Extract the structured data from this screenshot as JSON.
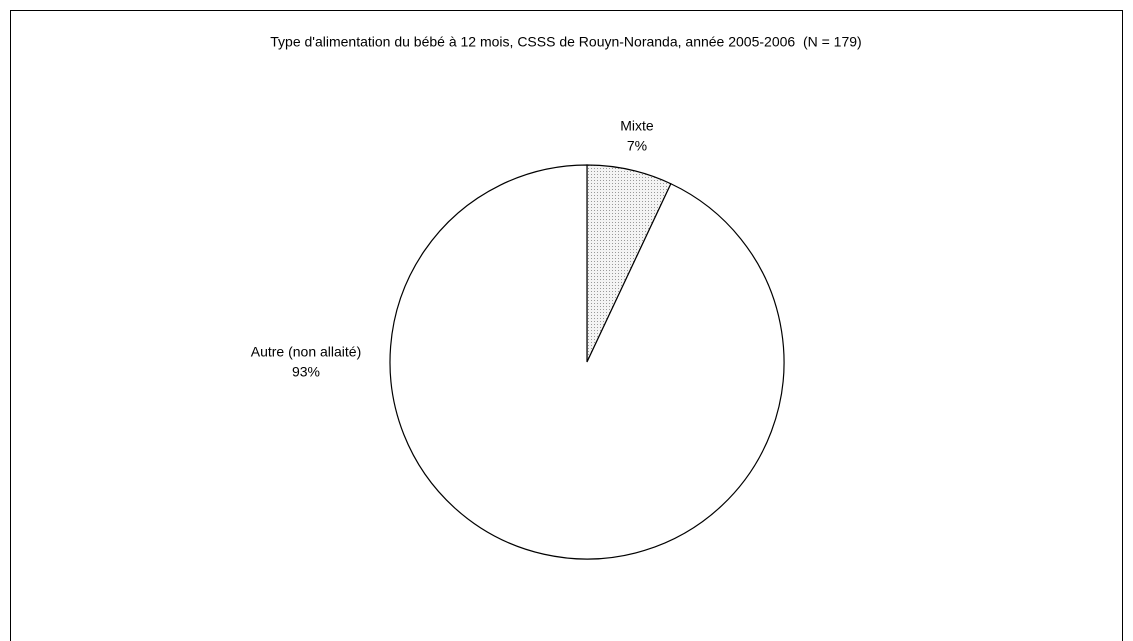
{
  "chart_data": {
    "type": "pie",
    "title": "Type d'alimentation du bébé à 12 mois, CSSS de Rouyn-Noranda, année 2005-2006  (N = 179)",
    "categories": [
      "Mixte",
      "Autre (non allaité)"
    ],
    "values": [
      7,
      93
    ],
    "value_labels": [
      "7%",
      "93%"
    ],
    "colors": [
      "#e4e4e4",
      "#ffffff"
    ]
  }
}
